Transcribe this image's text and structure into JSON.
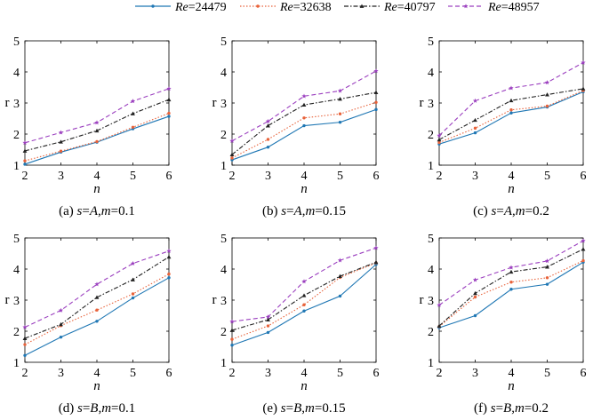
{
  "legend": {
    "entries": [
      {
        "label_prefix": "Re",
        "label_value": "=24479",
        "color": "#1f77b4",
        "dash": "solid",
        "marker": "point"
      },
      {
        "label_prefix": "Re",
        "label_value": "=32638",
        "color": "#e8623a",
        "dash": "dotted",
        "marker": "point"
      },
      {
        "label_prefix": "Re",
        "label_value": "=40797",
        "color": "#222222",
        "dash": "dashdot",
        "marker": "triangle"
      },
      {
        "label_prefix": "Re",
        "label_value": "=48957",
        "color": "#9b3fbf",
        "dash": "dashed",
        "marker": "star"
      }
    ]
  },
  "chart_data": [
    {
      "type": "line",
      "caption_tag": "(a) ",
      "caption_s": "A",
      "caption_m": "0.1",
      "xlabel": "n",
      "ylabel": "r",
      "x": [
        2,
        3,
        4,
        5,
        6
      ],
      "xlim": [
        2,
        6
      ],
      "ylim": [
        1,
        5
      ],
      "xticks": [
        "2",
        "3",
        "4",
        "5",
        "6"
      ],
      "yticks": [
        "1",
        "2",
        "3",
        "4",
        "5"
      ],
      "series": [
        {
          "name": "Re=24479",
          "values": [
            1.03,
            1.42,
            1.74,
            2.17,
            2.57
          ]
        },
        {
          "name": "Re=32638",
          "values": [
            1.14,
            1.45,
            1.76,
            2.22,
            2.67
          ]
        },
        {
          "name": "Re=40797",
          "values": [
            1.46,
            1.75,
            2.11,
            2.66,
            3.11
          ]
        },
        {
          "name": "Re=48957",
          "values": [
            1.72,
            2.05,
            2.37,
            3.06,
            3.46
          ]
        }
      ]
    },
    {
      "type": "line",
      "caption_tag": "(b) ",
      "caption_s": "A",
      "caption_m": "0.15",
      "xlabel": "n",
      "ylabel": "r",
      "x": [
        2,
        3,
        4,
        5,
        6
      ],
      "xlim": [
        2,
        6
      ],
      "ylim": [
        1,
        5
      ],
      "xticks": [
        "2",
        "3",
        "4",
        "5",
        "6"
      ],
      "yticks": [
        "1",
        "2",
        "3",
        "4",
        "5"
      ],
      "series": [
        {
          "name": "Re=24479",
          "values": [
            1.17,
            1.58,
            2.27,
            2.38,
            2.79
          ]
        },
        {
          "name": "Re=32638",
          "values": [
            1.23,
            1.83,
            2.52,
            2.65,
            3.02
          ]
        },
        {
          "name": "Re=40797",
          "values": [
            1.34,
            2.27,
            2.94,
            3.13,
            3.34
          ]
        },
        {
          "name": "Re=48957",
          "values": [
            1.78,
            2.41,
            3.22,
            3.39,
            4.03
          ]
        }
      ]
    },
    {
      "type": "line",
      "caption_tag": "(c) ",
      "caption_s": "A",
      "caption_m": "0.2",
      "xlabel": "n",
      "ylabel": "r",
      "x": [
        2,
        3,
        4,
        5,
        6
      ],
      "xlim": [
        2,
        6
      ],
      "ylim": [
        1,
        5
      ],
      "xticks": [
        "2",
        "3",
        "4",
        "5",
        "6"
      ],
      "yticks": [
        "1",
        "2",
        "3",
        "4",
        "5"
      ],
      "series": [
        {
          "name": "Re=24479",
          "values": [
            1.68,
            2.04,
            2.68,
            2.87,
            3.36
          ]
        },
        {
          "name": "Re=32638",
          "values": [
            1.73,
            2.19,
            2.78,
            2.9,
            3.4
          ]
        },
        {
          "name": "Re=40797",
          "values": [
            1.82,
            2.45,
            3.08,
            3.27,
            3.46
          ]
        },
        {
          "name": "Re=48957",
          "values": [
            1.95,
            3.07,
            3.48,
            3.66,
            4.3
          ]
        }
      ]
    },
    {
      "type": "line",
      "caption_tag": "(d) ",
      "caption_s": "B",
      "caption_m": "0.1",
      "xlabel": "n",
      "ylabel": "r",
      "x": [
        2,
        3,
        4,
        5,
        6
      ],
      "xlim": [
        2,
        6
      ],
      "ylim": [
        1,
        5
      ],
      "xticks": [
        "2",
        "3",
        "4",
        "5",
        "6"
      ],
      "yticks": [
        "1",
        "2",
        "3",
        "4",
        "5"
      ],
      "series": [
        {
          "name": "Re=24479",
          "values": [
            1.22,
            1.81,
            2.32,
            3.07,
            3.72
          ]
        },
        {
          "name": "Re=32638",
          "values": [
            1.57,
            2.18,
            2.68,
            3.2,
            3.84
          ]
        },
        {
          "name": "Re=40797",
          "values": [
            1.77,
            2.22,
            3.09,
            3.66,
            4.39
          ]
        },
        {
          "name": "Re=48957",
          "values": [
            2.13,
            2.67,
            3.51,
            4.18,
            4.58
          ]
        }
      ]
    },
    {
      "type": "line",
      "caption_tag": "(e) ",
      "caption_s": "B",
      "caption_m": "0.15",
      "xlabel": "n",
      "ylabel": "r",
      "x": [
        2,
        3,
        4,
        5,
        6
      ],
      "xlim": [
        2,
        6
      ],
      "ylim": [
        1,
        5
      ],
      "xticks": [
        "2",
        "3",
        "4",
        "5",
        "6"
      ],
      "yticks": [
        "1",
        "2",
        "3",
        "4",
        "5"
      ],
      "series": [
        {
          "name": "Re=24479",
          "values": [
            1.55,
            1.96,
            2.65,
            3.13,
            4.15
          ]
        },
        {
          "name": "Re=32638",
          "values": [
            1.74,
            2.17,
            2.85,
            3.73,
            4.2
          ]
        },
        {
          "name": "Re=40797",
          "values": [
            2.03,
            2.37,
            3.15,
            3.77,
            4.22
          ]
        },
        {
          "name": "Re=48957",
          "values": [
            2.31,
            2.46,
            3.6,
            4.28,
            4.68
          ]
        }
      ]
    },
    {
      "type": "line",
      "caption_tag": "(f) ",
      "caption_s": "B",
      "caption_m": "0.2",
      "xlabel": "n",
      "ylabel": "r",
      "x": [
        2,
        3,
        4,
        5,
        6
      ],
      "xlim": [
        2,
        6
      ],
      "ylim": [
        1,
        5
      ],
      "xticks": [
        "2",
        "3",
        "4",
        "5",
        "6"
      ],
      "yticks": [
        "1",
        "2",
        "3",
        "4",
        "5"
      ],
      "series": [
        {
          "name": "Re=24479",
          "values": [
            2.11,
            2.5,
            3.35,
            3.51,
            4.22
          ]
        },
        {
          "name": "Re=32638",
          "values": [
            2.15,
            3.1,
            3.58,
            3.72,
            4.27
          ]
        },
        {
          "name": "Re=40797",
          "values": [
            2.17,
            3.22,
            3.91,
            4.07,
            4.64
          ]
        },
        {
          "name": "Re=48957",
          "values": [
            2.84,
            3.65,
            4.05,
            4.26,
            4.91
          ]
        }
      ]
    }
  ]
}
